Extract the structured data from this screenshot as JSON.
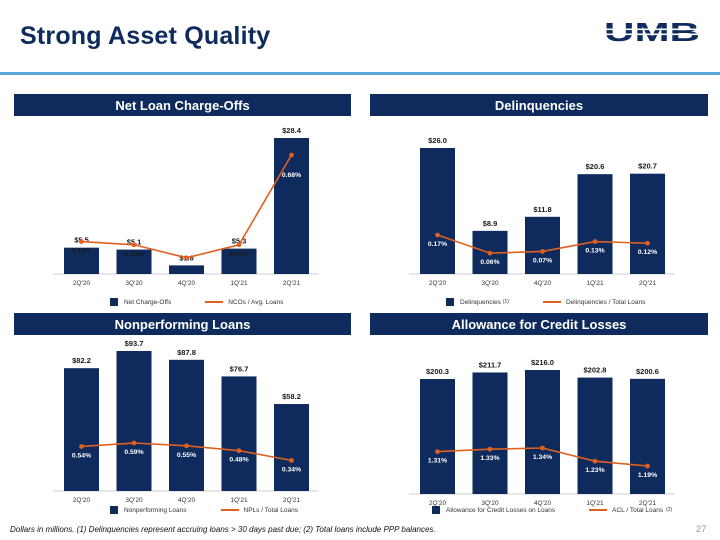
{
  "page": {
    "title": "Strong Asset Quality",
    "logo_text": "UMB",
    "footnote": "Dollars in millions. (1) Delinquencies represent accruing loans > 30 days past due; (2) Total loans include PPP balances.",
    "page_number": "27"
  },
  "colors": {
    "navy": "#0f2a5c",
    "orange": "#e06020",
    "accent_rule": "#5aa7dc"
  },
  "chart_data": [
    {
      "id": "nco",
      "type": "bar",
      "title": "Net Loan Charge-Offs",
      "categories": [
        "2Q'20",
        "3Q'20",
        "4Q'20",
        "1Q'21",
        "2Q'21"
      ],
      "bar_series": {
        "name": "Net Charge-Offs",
        "values": [
          5.5,
          5.1,
          1.8,
          5.3,
          28.4
        ],
        "labels": [
          "$5.5",
          "$5.1",
          "$1.8",
          "$5.3",
          "$28.4"
        ]
      },
      "line_series": {
        "name": "NCOs / Avg. Loans",
        "values": [
          0.15,
          0.13,
          0.05,
          0.13,
          0.68
        ],
        "labels": [
          "0.15%",
          "0.13%",
          "",
          "0.13%",
          "0.68%"
        ]
      },
      "legend": {
        "bar_label": "Net Charge-Offs",
        "bar_sup": "",
        "line_label": "NCOs / Avg. Loans",
        "line_sup": ""
      }
    },
    {
      "id": "delinq",
      "type": "bar",
      "title": "Delinquencies",
      "categories": [
        "2Q'20",
        "3Q'20",
        "4Q'20",
        "1Q'21",
        "2Q'21"
      ],
      "bar_series": {
        "name": "Delinquencies",
        "values": [
          26.0,
          8.9,
          11.8,
          20.6,
          20.7
        ],
        "labels": [
          "$26.0",
          "$8.9",
          "$11.8",
          "$20.6",
          "$20.7"
        ]
      },
      "line_series": {
        "name": "Delinquencies / Total Loans",
        "values": [
          0.17,
          0.06,
          0.07,
          0.13,
          0.12
        ],
        "labels": [
          "0.17%",
          "0.06%",
          "0.07%",
          "0.13%",
          "0.12%"
        ]
      },
      "legend": {
        "bar_label": "Delinquencies",
        "bar_sup": "(1)",
        "line_label": "Delinquencies / Total Loans",
        "line_sup": ""
      }
    },
    {
      "id": "npl",
      "type": "bar",
      "title": "Nonperforming Loans",
      "categories": [
        "2Q'20",
        "3Q'20",
        "4Q'20",
        "1Q'21",
        "2Q'21"
      ],
      "bar_series": {
        "name": "Nonperforming Loans",
        "values": [
          82.2,
          93.7,
          87.8,
          76.7,
          58.2
        ],
        "labels": [
          "$82.2",
          "$93.7",
          "$87.8",
          "$76.7",
          "$58.2"
        ]
      },
      "line_series": {
        "name": "NPLs / Total Loans",
        "values": [
          0.54,
          0.59,
          0.55,
          0.48,
          0.34
        ],
        "labels": [
          "0.54%",
          "0.59%",
          "0.55%",
          "0.48%",
          "0.34%"
        ]
      },
      "legend": {
        "bar_label": "Nonperforming Loans",
        "bar_sup": "",
        "line_label": "NPLs / Total Loans",
        "line_sup": ""
      }
    },
    {
      "id": "acl",
      "type": "bar",
      "title": "Allowance for Credit Losses",
      "categories": [
        "2Q'20",
        "3Q'20",
        "4Q'20",
        "1Q'21",
        "2Q'21"
      ],
      "bar_series": {
        "name": "Allowance for Credit Losses on Loans",
        "values": [
          200.3,
          211.7,
          216.0,
          202.8,
          200.6
        ],
        "labels": [
          "$200.3",
          "$211.7",
          "$216.0",
          "$202.8",
          "$200.6"
        ]
      },
      "line_series": {
        "name": "ACL / Total Loans",
        "values": [
          1.31,
          1.33,
          1.34,
          1.23,
          1.19
        ],
        "labels": [
          "1.31%",
          "1.33%",
          "1.34%",
          "1.23%",
          "1.19%"
        ]
      },
      "legend": {
        "bar_label": "Allowance for Credit Losses on Loans",
        "bar_sup": "",
        "line_label": "ACL / Total Loans",
        "line_sup": "(2)"
      }
    }
  ]
}
